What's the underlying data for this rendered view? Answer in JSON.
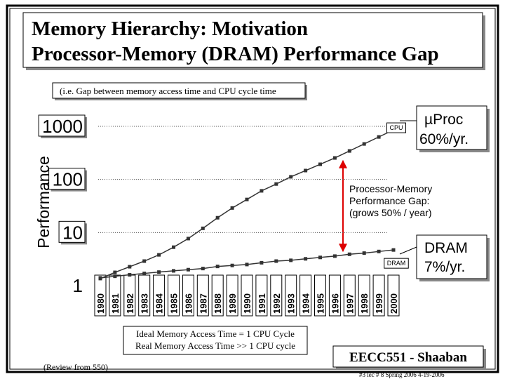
{
  "chart_data": {
    "type": "line",
    "title": "Memory Hierarchy:  Motivation",
    "subtitle": "Processor-Memory (DRAM) Performance Gap",
    "note": "(i.e.  Gap between memory access time and CPU cycle time",
    "y_label": "Performance",
    "categories": [
      "1980",
      "1981",
      "1982",
      "1983",
      "1984",
      "1985",
      "1986",
      "1987",
      "1988",
      "1989",
      "1990",
      "1991",
      "1992",
      "1993",
      "1994",
      "1995",
      "1996",
      "1997",
      "1998",
      "1999",
      "2000"
    ],
    "series": [
      {
        "name": "CPU",
        "color": "#333333",
        "values": [
          1.36,
          1.78,
          2.27,
          2.9,
          3.8,
          5.3,
          7.7,
          12,
          19,
          29,
          42,
          61,
          82,
          112,
          147,
          193,
          254,
          344,
          466,
          631,
          857
        ]
      },
      {
        "name": "DRAM",
        "color": "#333333",
        "values": [
          1.4,
          1.5,
          1.6,
          1.7,
          1.8,
          1.9,
          2,
          2.1,
          2.3,
          2.4,
          2.5,
          2.7,
          2.9,
          3,
          3.2,
          3.4,
          3.6,
          3.9,
          4.1,
          4.4,
          4.7
        ]
      }
    ],
    "log_scale": true,
    "grid": true,
    "ylim": [
      1,
      1000
    ],
    "yticks": [
      1,
      10,
      100,
      1000
    ],
    "cpu_note": [
      "µProc",
      "60%/yr."
    ],
    "gap_note": [
      "Processor-Memory",
      "Performance Gap:",
      "(grows 50% / year)"
    ],
    "dram_note": [
      "DRAM",
      "7%/yr."
    ],
    "access_note": [
      "Ideal Memory Access Time = 1 CPU Cycle",
      "Real Memory Access Time >> 1 CPU cycle"
    ],
    "review": "(Review from 550)",
    "footer": "EECC551 - Shaaban",
    "footer_note": "#3   lec # 8    Spring 2006  4-19-2006"
  }
}
